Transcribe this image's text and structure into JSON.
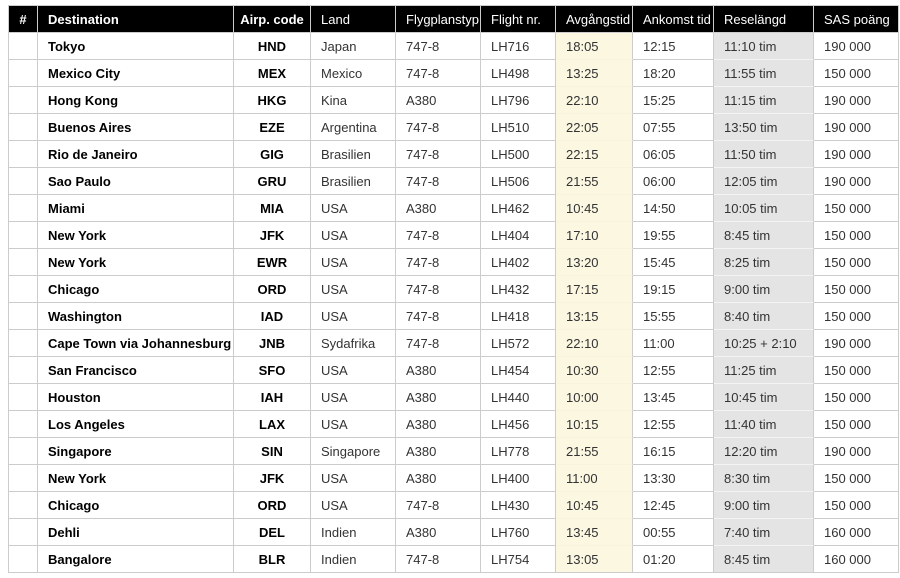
{
  "colors": {
    "header_bg": "#000000",
    "header_text": "#ffffff",
    "departure_highlight": "#fbf7e1",
    "duration_highlight": "#e4e4e4",
    "grid_line": "#cccccc",
    "body_text": "#333333",
    "bold_text": "#000000"
  },
  "chart_data": {
    "type": "table",
    "columns": [
      {
        "key": "rank",
        "label": "#"
      },
      {
        "key": "destination",
        "label": "Destination"
      },
      {
        "key": "airport-code",
        "label": "Airp. code"
      },
      {
        "key": "land",
        "label": "Land"
      },
      {
        "key": "aircraft-type",
        "label": "Flygplanstyp"
      },
      {
        "key": "flight-number",
        "label": "Flight nr."
      },
      {
        "key": "departure-time",
        "label": "Avgångstid"
      },
      {
        "key": "arrival-time",
        "label": "Ankomst tid"
      },
      {
        "key": "travel-duration",
        "label": "Reselängd"
      },
      {
        "key": "sas-points",
        "label": "SAS poäng"
      }
    ],
    "rows": [
      [
        "",
        "Tokyo",
        "HND",
        "Japan",
        "747-8",
        "LH716",
        "18:05",
        "12:15",
        "11:10 tim",
        "190 000"
      ],
      [
        "",
        "Mexico City",
        "MEX",
        "Mexico",
        "747-8",
        "LH498",
        "13:25",
        "18:20",
        "11:55 tim",
        "150 000"
      ],
      [
        "",
        "Hong Kong",
        "HKG",
        "Kina",
        "A380",
        "LH796",
        "22:10",
        "15:25",
        "11:15 tim",
        "190 000"
      ],
      [
        "",
        "Buenos Aires",
        "EZE",
        "Argentina",
        "747-8",
        "LH510",
        "22:05",
        "07:55",
        "13:50 tim",
        "190 000"
      ],
      [
        "",
        "Rio de Janeiro",
        "GIG",
        "Brasilien",
        "747-8",
        "LH500",
        "22:15",
        "06:05",
        "11:50 tim",
        "190 000"
      ],
      [
        "",
        "Sao Paulo",
        "GRU",
        "Brasilien",
        "747-8",
        "LH506",
        "21:55",
        "06:00",
        "12:05 tim",
        "190 000"
      ],
      [
        "",
        "Miami",
        "MIA",
        "USA",
        "A380",
        "LH462",
        "10:45",
        "14:50",
        "10:05 tim",
        "150 000"
      ],
      [
        "",
        "New York",
        "JFK",
        "USA",
        "747-8",
        "LH404",
        "17:10",
        "19:55",
        "8:45 tim",
        "150 000"
      ],
      [
        "",
        "New York",
        "EWR",
        "USA",
        "747-8",
        "LH402",
        "13:20",
        "15:45",
        "8:25 tim",
        "150 000"
      ],
      [
        "",
        "Chicago",
        "ORD",
        "USA",
        "747-8",
        "LH432",
        "17:15",
        "19:15",
        "9:00 tim",
        "150 000"
      ],
      [
        "",
        "Washington",
        "IAD",
        "USA",
        "747-8",
        "LH418",
        "13:15",
        "15:55",
        "8:40 tim",
        "150 000"
      ],
      [
        "",
        "Cape Town via Johannesburg",
        "JNB",
        "Sydafrika",
        "747-8",
        "LH572",
        "22:10",
        "11:00",
        "10:25 + 2:10",
        "190 000"
      ],
      [
        "",
        "San Francisco",
        "SFO",
        "USA",
        "A380",
        "LH454",
        "10:30",
        "12:55",
        "11:25 tim",
        "150 000"
      ],
      [
        "",
        "Houston",
        "IAH",
        "USA",
        "A380",
        "LH440",
        "10:00",
        "13:45",
        "10:45 tim",
        "150 000"
      ],
      [
        "",
        "Los Angeles",
        "LAX",
        "USA",
        "A380",
        "LH456",
        "10:15",
        "12:55",
        "11:40 tim",
        "150 000"
      ],
      [
        "",
        "Singapore",
        "SIN",
        "Singapore",
        "A380",
        "LH778",
        "21:55",
        "16:15",
        "12:20 tim",
        "190 000"
      ],
      [
        "",
        "New York",
        "JFK",
        "USA",
        "A380",
        "LH400",
        "11:00",
        "13:30",
        "8:30 tim",
        "150 000"
      ],
      [
        "",
        "Chicago",
        "ORD",
        "USA",
        "747-8",
        "LH430",
        "10:45",
        "12:45",
        "9:00 tim",
        "150 000"
      ],
      [
        "",
        "Dehli",
        "DEL",
        "Indien",
        "A380",
        "LH760",
        "13:45",
        "00:55",
        "7:40 tim",
        "160 000"
      ],
      [
        "",
        "Bangalore",
        "BLR",
        "Indien",
        "747-8",
        "LH754",
        "13:05",
        "01:20",
        "8:45 tim",
        "160 000"
      ]
    ]
  }
}
